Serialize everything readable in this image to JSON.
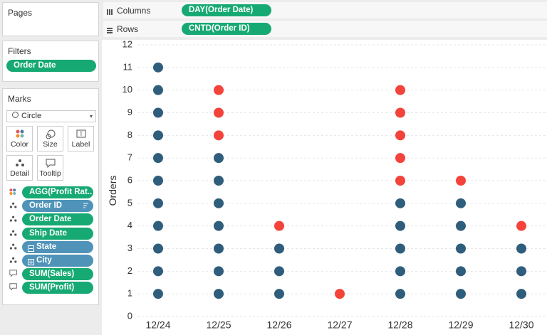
{
  "pages": {
    "title": "Pages"
  },
  "filters": {
    "title": "Filters",
    "pills": [
      {
        "label": "Order Date",
        "color": "#17a974"
      }
    ]
  },
  "marks": {
    "title": "Marks",
    "mark_type": "Circle",
    "buttons": [
      "Color",
      "Size",
      "Label",
      "Detail",
      "Tooltip"
    ],
    "fields": [
      {
        "label": "AGG(Profit Rat..",
        "color": "#17a974",
        "encoding": "color"
      },
      {
        "label": "Order ID",
        "color": "#4f93b8",
        "encoding": "detail",
        "sorted": true
      },
      {
        "label": "Order Date",
        "color": "#17a974",
        "encoding": "detail"
      },
      {
        "label": "Ship Date",
        "color": "#17a974",
        "encoding": "detail"
      },
      {
        "label": "State",
        "color": "#4f93b8",
        "encoding": "detail",
        "hierarchy": "collapse"
      },
      {
        "label": "City",
        "color": "#4f93b8",
        "encoding": "detail",
        "hierarchy": "expand"
      },
      {
        "label": "SUM(Sales)",
        "color": "#17a974",
        "encoding": "tooltip"
      },
      {
        "label": "SUM(Profit)",
        "color": "#17a974",
        "encoding": "tooltip"
      }
    ]
  },
  "shelves": {
    "columns": {
      "label": "Columns",
      "pill": "DAY(Order Date)"
    },
    "rows": {
      "label": "Rows",
      "pill": "CNTD(Order ID)"
    }
  },
  "chart_data": {
    "type": "dot-stack",
    "y_label": "Orders",
    "categories": [
      "12/24",
      "12/25",
      "12/26",
      "12/27",
      "12/28",
      "12/29",
      "12/30"
    ],
    "series": [
      {
        "color": "#2f5d7c",
        "values": [
          [
            1,
            2,
            3,
            4,
            5,
            6,
            7,
            8,
            9,
            10,
            11
          ],
          [
            1,
            2,
            3,
            4,
            5,
            6,
            7
          ],
          [
            1,
            2,
            3
          ],
          [],
          [
            1,
            2,
            3,
            4,
            5
          ],
          [
            1,
            2,
            3,
            4,
            5
          ],
          [
            1,
            2,
            3
          ]
        ]
      },
      {
        "color": "#f4433a",
        "values": [
          [],
          [
            8,
            9,
            10
          ],
          [
            4
          ],
          [
            1
          ],
          [
            6,
            7,
            8,
            9,
            10
          ],
          [
            6
          ],
          [
            4
          ]
        ]
      }
    ],
    "ylim": [
      0,
      12
    ],
    "yticks": [
      0,
      1,
      2,
      3,
      4,
      5,
      6,
      7,
      8,
      9,
      10,
      11,
      12
    ],
    "grid": true
  }
}
